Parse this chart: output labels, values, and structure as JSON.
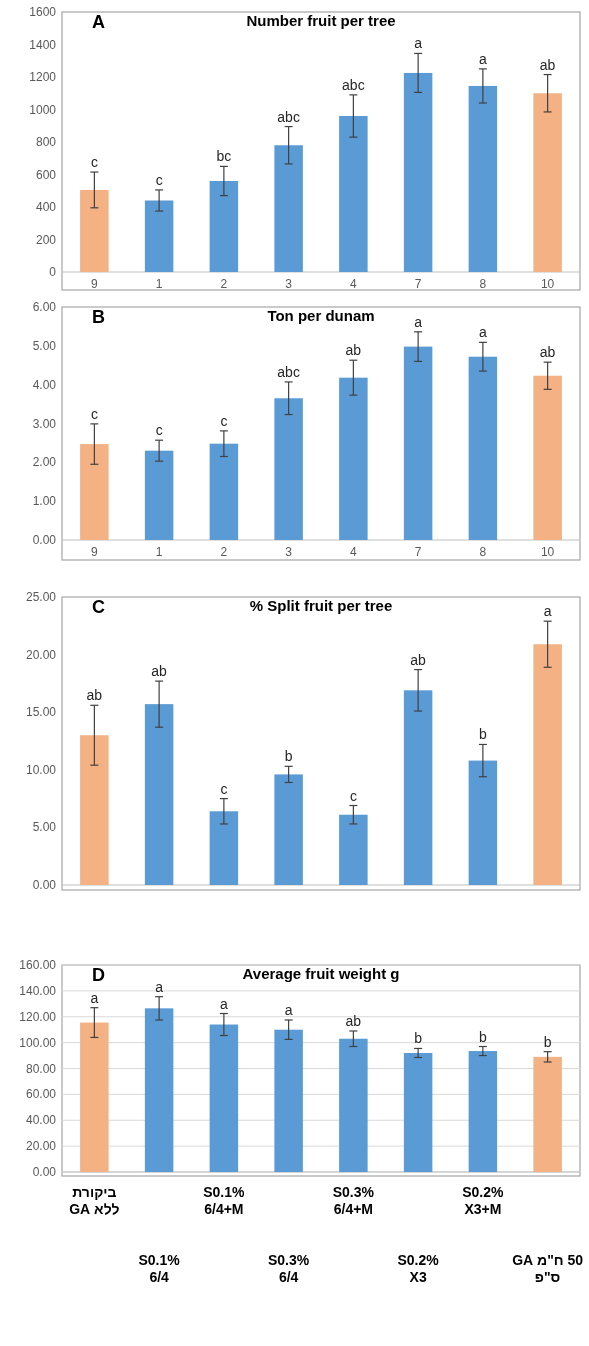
{
  "chart_data": [
    {
      "type": "bar",
      "title": "Number fruit per tree",
      "annotations": [
        "A"
      ],
      "categories": [
        "9",
        "1",
        "2",
        "3",
        "4",
        "7",
        "8",
        "10"
      ],
      "values": [
        505,
        440,
        560,
        780,
        960,
        1225,
        1145,
        1100
      ],
      "errors": [
        110,
        65,
        90,
        115,
        130,
        120,
        105,
        115
      ],
      "colors": [
        "#f4b183",
        "#5b9bd5",
        "#5b9bd5",
        "#5b9bd5",
        "#5b9bd5",
        "#5b9bd5",
        "#5b9bd5",
        "#f4b183"
      ],
      "value_labels": [
        "c",
        "c",
        "bc",
        "abc",
        "abc",
        "a",
        "a",
        "ab"
      ],
      "ylim": [
        0,
        1600
      ],
      "yticks": [
        0,
        200,
        400,
        600,
        800,
        1000,
        1200,
        1400,
        1600
      ],
      "grid": false
    },
    {
      "type": "bar",
      "title": "Ton per dunam",
      "annotations": [
        "B"
      ],
      "categories": [
        "9",
        "1",
        "2",
        "3",
        "4",
        "7",
        "8",
        "10"
      ],
      "values": [
        2.47,
        2.3,
        2.48,
        3.65,
        4.18,
        4.98,
        4.72,
        4.23
      ],
      "errors": [
        0.52,
        0.27,
        0.33,
        0.42,
        0.45,
        0.38,
        0.37,
        0.35
      ],
      "colors": [
        "#f4b183",
        "#5b9bd5",
        "#5b9bd5",
        "#5b9bd5",
        "#5b9bd5",
        "#5b9bd5",
        "#5b9bd5",
        "#f4b183"
      ],
      "value_labels": [
        "c",
        "c",
        "c",
        "abc",
        "ab",
        "a",
        "a",
        "ab"
      ],
      "ylim": [
        0,
        6
      ],
      "yticks": [
        {
          "value": 0,
          "label": "0.00"
        },
        {
          "value": 1,
          "label": "1.00"
        },
        {
          "value": 2,
          "label": "2.00"
        },
        {
          "value": 3,
          "label": "3.00"
        },
        {
          "value": 4,
          "label": "4.00"
        },
        {
          "value": 5,
          "label": "5.00"
        },
        {
          "value": 6,
          "label": "6.00"
        }
      ],
      "grid": false
    },
    {
      "type": "bar",
      "title": "%  Split fruit per tree",
      "annotations": [
        "C"
      ],
      "categories": [
        null,
        null,
        null,
        null,
        null,
        null,
        null,
        null
      ],
      "values": [
        13.0,
        15.7,
        6.4,
        9.6,
        6.1,
        16.9,
        10.8,
        20.9
      ],
      "errors": [
        2.6,
        2.0,
        1.1,
        0.7,
        0.8,
        1.8,
        1.4,
        2.0
      ],
      "colors": [
        "#f4b183",
        "#5b9bd5",
        "#5b9bd5",
        "#5b9bd5",
        "#5b9bd5",
        "#5b9bd5",
        "#5b9bd5",
        "#f4b183"
      ],
      "value_labels": [
        "ab",
        "ab",
        "c",
        "b",
        "c",
        "ab",
        "b",
        "a"
      ],
      "ylim": [
        0,
        25
      ],
      "yticks": [
        {
          "value": 0,
          "label": "0.00"
        },
        {
          "value": 5,
          "label": "5.00"
        },
        {
          "value": 10,
          "label": "10.00"
        },
        {
          "value": 15,
          "label": "15.00"
        },
        {
          "value": 20,
          "label": "20.00"
        },
        {
          "value": 25,
          "label": "25.00"
        }
      ],
      "grid": false
    },
    {
      "type": "bar",
      "title": "Average fruit weight g",
      "annotations": [
        "D"
      ],
      "categories": [
        "ביקורת\nללא GA",
        "S0.1%\n6/4",
        "S0.1%\n6/4+M",
        "S0.3%\n6/4",
        "S0.3%\n6/4+M",
        "S0.2%\nX3",
        "S0.2%\nX3+M",
        "50 ח\"מ GA\nס\"פ"
      ],
      "values": [
        115.5,
        126.5,
        114,
        110,
        103,
        92,
        93.5,
        89
      ],
      "errors": [
        11.5,
        9,
        8.5,
        7.5,
        6,
        3.5,
        3.5,
        4
      ],
      "colors": [
        "#f4b183",
        "#5b9bd5",
        "#5b9bd5",
        "#5b9bd5",
        "#5b9bd5",
        "#5b9bd5",
        "#5b9bd5",
        "#f4b183"
      ],
      "value_labels": [
        "a",
        "a",
        "a",
        "a",
        "ab",
        "b",
        "b",
        "b"
      ],
      "ylim": [
        0,
        160
      ],
      "yticks": [
        {
          "value": 0,
          "label": "0.00"
        },
        {
          "value": 20,
          "label": "20.00"
        },
        {
          "value": 40,
          "label": "40.00"
        },
        {
          "value": 60,
          "label": "60.00"
        },
        {
          "value": 80,
          "label": "80.00"
        },
        {
          "value": 100,
          "label": "100.00"
        },
        {
          "value": 120,
          "label": "120.00"
        },
        {
          "value": 140,
          "label": "140.00"
        },
        {
          "value": 160,
          "label": "160.00"
        }
      ],
      "grid": "y"
    }
  ]
}
